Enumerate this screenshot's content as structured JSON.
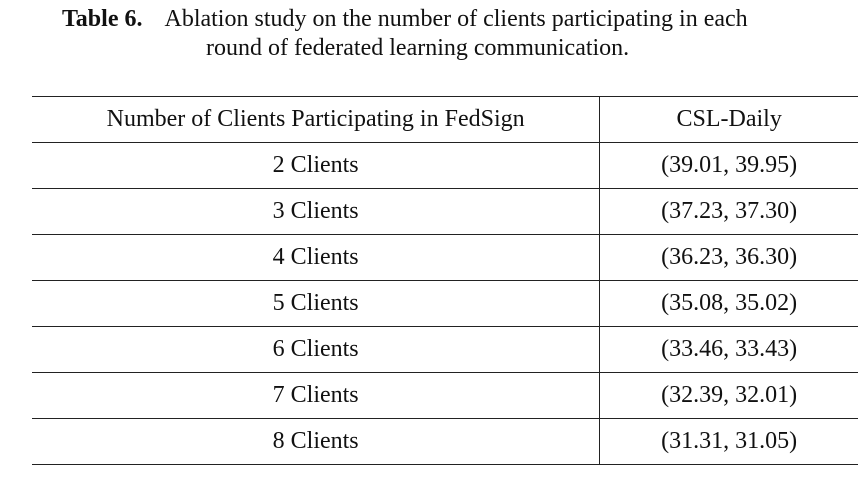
{
  "caption": {
    "label": "Table 6.",
    "line1": "Ablation study on the number of clients participating in each",
    "line2": "round of federated learning communication."
  },
  "table": {
    "headers": [
      "Number of Clients Participating in FedSign",
      "CSL-Daily"
    ],
    "rows": [
      [
        "2 Clients",
        "(39.01, 39.95)"
      ],
      [
        "3 Clients",
        "(37.23, 37.30)"
      ],
      [
        "4 Clients",
        "(36.23, 36.30)"
      ],
      [
        "5 Clients",
        "(35.08, 35.02)"
      ],
      [
        "6 Clients",
        "(33.46, 33.43)"
      ],
      [
        "7 Clients",
        "(32.39, 32.01)"
      ],
      [
        "8 Clients",
        "(31.31, 31.05)"
      ]
    ]
  }
}
